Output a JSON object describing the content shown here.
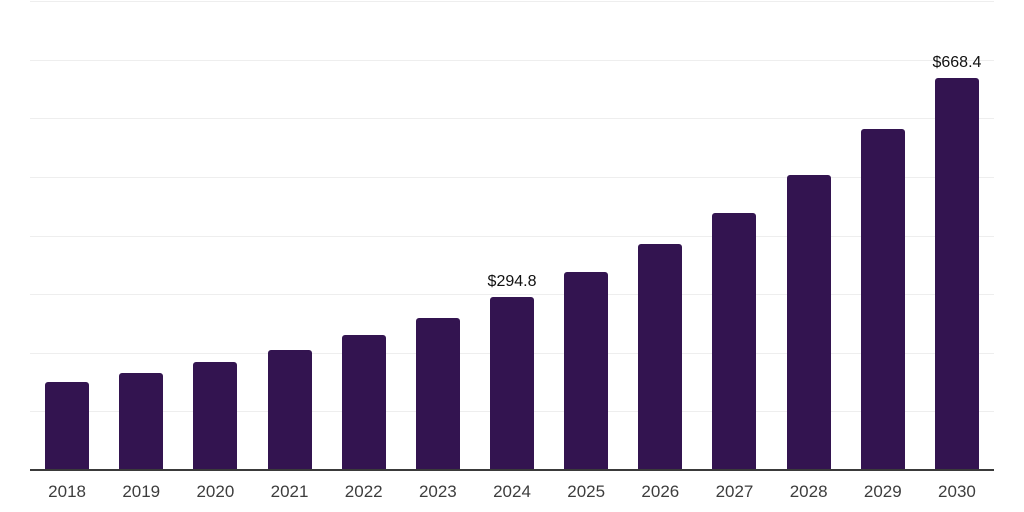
{
  "chart_data": {
    "type": "bar",
    "title": "",
    "xlabel": "",
    "ylabel": "",
    "categories": [
      "2018",
      "2019",
      "2020",
      "2021",
      "2022",
      "2023",
      "2024",
      "2025",
      "2026",
      "2027",
      "2028",
      "2029",
      "2030"
    ],
    "values": [
      150,
      166,
      184,
      204,
      231,
      260,
      294.8,
      337,
      385,
      439,
      503,
      581,
      668.4
    ],
    "data_labels": [
      "",
      "",
      "",
      "",
      "",
      "",
      "$294.8",
      "",
      "",
      "",
      "",
      "",
      "$668.4"
    ],
    "ylim": [
      0,
      800
    ],
    "gridline_step": 100,
    "grid": true,
    "legend": false,
    "y_tick_labels_visible": false,
    "bar_color": "#331450",
    "gridline_color": "#eeeeee",
    "axis_line_color": "#3a3a3a",
    "value_label_color": "#111111",
    "tick_label_color": "#3d3d3d",
    "background_color": "#ffffff"
  }
}
